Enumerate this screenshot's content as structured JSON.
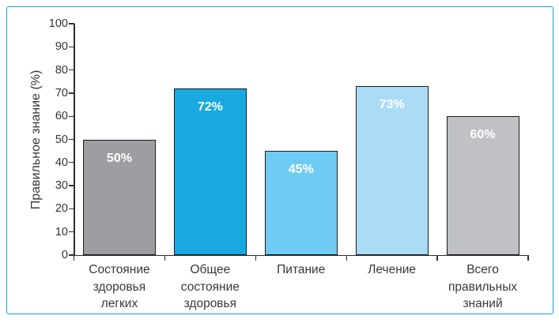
{
  "chart_data": {
    "type": "bar",
    "title": "",
    "ylabel": "Правильное знание (%)",
    "xlabel": "",
    "categories": [
      "Состояние здоровья легких",
      "Общее состояние здоровья",
      "Питание",
      "Лечение",
      "Всего правильных знаний"
    ],
    "values": [
      50,
      72,
      45,
      73,
      60
    ],
    "data_labels": [
      "50%",
      "72%",
      "45%",
      "73%",
      "60%"
    ],
    "bar_colors": [
      "#9c9ea1",
      "#18a9e1",
      "#6fcbf2",
      "#abdcf6",
      "#bfc1c4"
    ],
    "ylim": [
      0,
      100
    ],
    "yticks": [
      0,
      10,
      20,
      30,
      40,
      50,
      60,
      70,
      80,
      90,
      100
    ],
    "grid": false,
    "legend": false,
    "colors": {
      "frame_border": "#16a2da",
      "axis": "#2e2e2e",
      "bar_border": "#1b1b1b",
      "text": "#383838",
      "bar_value_text": "#ffffff"
    }
  }
}
